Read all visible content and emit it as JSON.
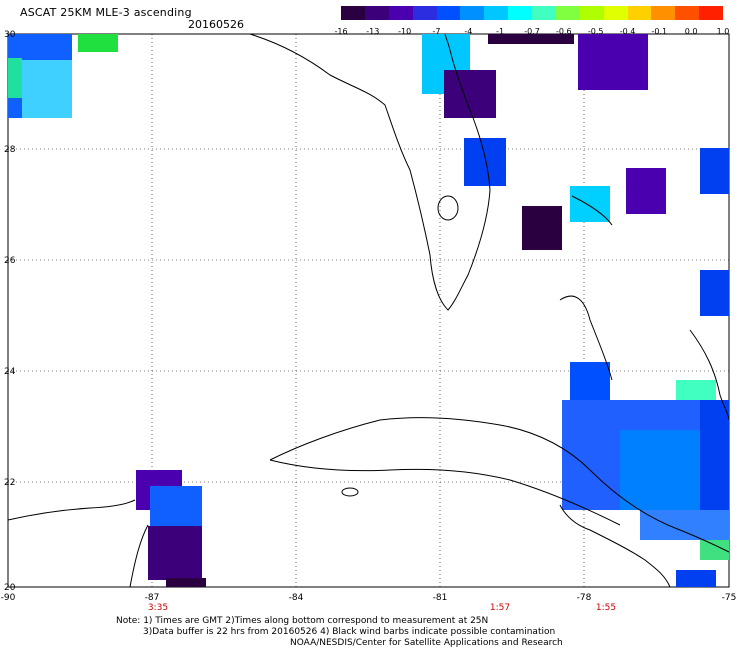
{
  "header": {
    "title": "ASCAT 25KM MLE-3 ascending",
    "date": "20160526"
  },
  "colorbar": {
    "colors": [
      "#2a0040",
      "#3c007a",
      "#4b00b0",
      "#2c2ce0",
      "#0050ff",
      "#0090ff",
      "#00c8ff",
      "#00ffff",
      "#40ffc0",
      "#80ff40",
      "#b0ff00",
      "#e0ff00",
      "#ffd000",
      "#ff9000",
      "#ff5000",
      "#ff2000"
    ],
    "labels": [
      "-16",
      "-13",
      "-10",
      "-7",
      "-4",
      "-1",
      "-0.7",
      "-0.6",
      "-0.5",
      "-0.4",
      "-0.1",
      "0.0",
      "1.0"
    ]
  },
  "axes": {
    "lon_labels": [
      "-90",
      "-87",
      "-84",
      "-81",
      "-78",
      "-75"
    ],
    "lat_labels": [
      "30",
      "28",
      "26",
      "24",
      "22",
      "20"
    ],
    "times": [
      {
        "lon": "-87",
        "text": "3:35"
      },
      {
        "lon": "-80",
        "text": "1:57"
      },
      {
        "lon": "-78",
        "text": "1:55"
      }
    ]
  },
  "notes": {
    "line1": "Note: 1) Times are GMT 2)Times along bottom correspond to measurement at 25N",
    "line2": "3)Data buffer is 22 hrs from 20160526 4) Black wind barbs indicate possible contamination",
    "line3": "NOAA/NESDIS/Center for Satellite Applications and Research"
  }
}
